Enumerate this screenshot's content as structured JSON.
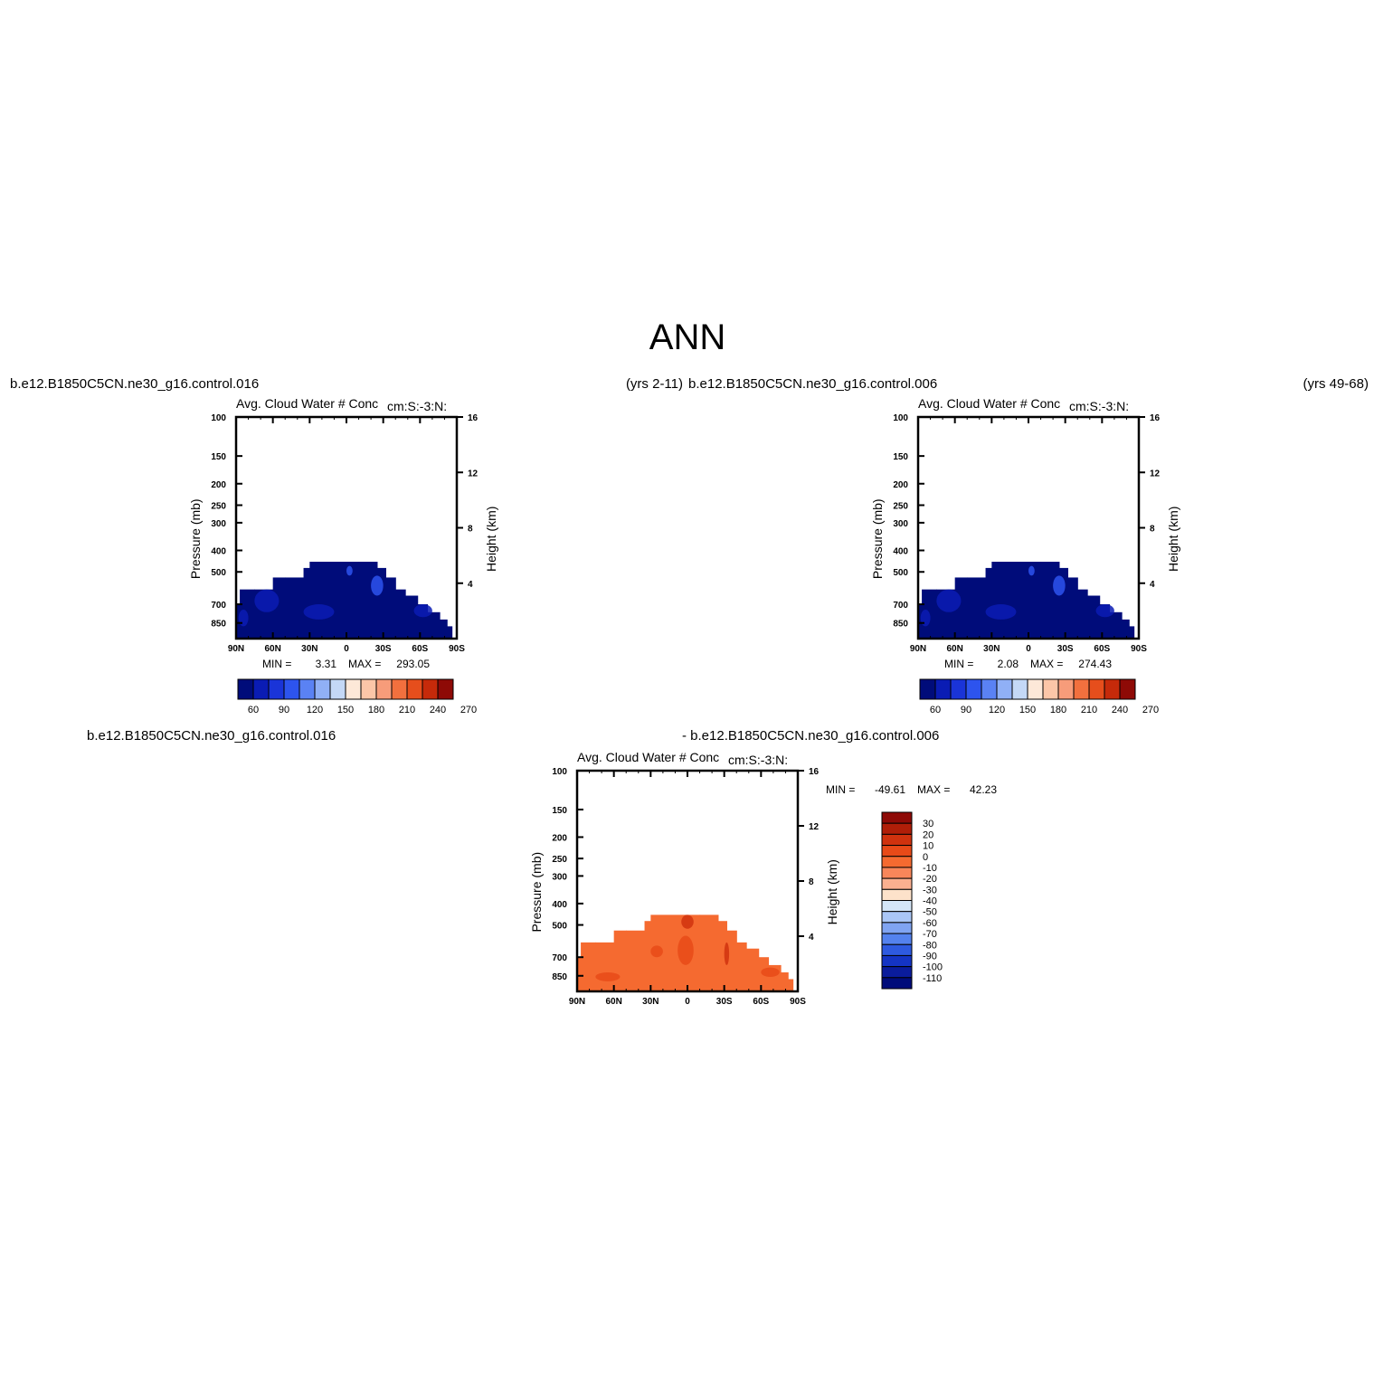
{
  "figure": {
    "title": "ANN",
    "run_labels": {
      "top_left": "b.e12.B1850C5CN.ne30_g16.control.016",
      "top_left_years": "(yrs 2-11)",
      "top_right": "b.e12.B1850C5CN.ne30_g16.control.006",
      "top_right_years": "(yrs 49-68)",
      "bottom_left": "b.e12.B1850C5CN.ne30_g16.control.016",
      "bottom_right": "- b.e12.B1850C5CN.ne30_g16.control.006"
    }
  },
  "chart_data": [
    {
      "type": "heatmap",
      "title": "Avg. Cloud Water # Conc",
      "subtitle": "cm:S:-3:N:",
      "ylabel": "Pressure (mb)",
      "y2label": "Height (km)",
      "x_ticks": [
        "90N",
        "60N",
        "30N",
        "0",
        "30S",
        "60S",
        "90S"
      ],
      "x_range": [
        90,
        -90
      ],
      "y_ticks": [
        100,
        150,
        200,
        250,
        300,
        400,
        500,
        700,
        850
      ],
      "y_range": [
        100,
        1000
      ],
      "y_scale": "log",
      "y2_ticks": [
        16,
        12,
        8,
        4
      ],
      "min_label": "MIN =",
      "min_value": "3.31",
      "max_label": "MAX =",
      "max_value": "293.05",
      "colorbar": {
        "orientation": "horizontal",
        "levels": [
          60,
          90,
          120,
          150,
          180,
          210,
          240,
          270
        ],
        "colors": [
          "#000c7a",
          "#0a1cb4",
          "#1a34d8",
          "#2d54ee",
          "#5a82f4",
          "#90b0f6",
          "#c4d8f6",
          "#fde8d8",
          "#fcc6a8",
          "#f79c7a",
          "#f2703e",
          "#e64e1c",
          "#c62a0a",
          "#8e0a06"
        ]
      }
    },
    {
      "type": "heatmap",
      "title": "Avg. Cloud Water # Conc",
      "subtitle": "cm:S:-3:N:",
      "ylabel": "Pressure (mb)",
      "y2label": "Height (km)",
      "x_ticks": [
        "90N",
        "60N",
        "30N",
        "0",
        "30S",
        "60S",
        "90S"
      ],
      "x_range": [
        90,
        -90
      ],
      "y_ticks": [
        100,
        150,
        200,
        250,
        300,
        400,
        500,
        700,
        850
      ],
      "y_range": [
        100,
        1000
      ],
      "y_scale": "log",
      "y2_ticks": [
        16,
        12,
        8,
        4
      ],
      "min_label": "MIN =",
      "min_value": "2.08",
      "max_label": "MAX =",
      "max_value": "274.43",
      "colorbar": {
        "orientation": "horizontal",
        "levels": [
          60,
          90,
          120,
          150,
          180,
          210,
          240,
          270
        ],
        "colors": [
          "#000c7a",
          "#0a1cb4",
          "#1a34d8",
          "#2d54ee",
          "#5a82f4",
          "#90b0f6",
          "#c4d8f6",
          "#fde8d8",
          "#fcc6a8",
          "#f79c7a",
          "#f2703e",
          "#e64e1c",
          "#c62a0a",
          "#8e0a06"
        ]
      }
    },
    {
      "type": "heatmap",
      "title": "Avg. Cloud Water # Conc",
      "subtitle": "cm:S:-3:N:",
      "ylabel": "Pressure (mb)",
      "y2label": "Height (km)",
      "x_ticks": [
        "90N",
        "60N",
        "30N",
        "0",
        "30S",
        "60S",
        "90S"
      ],
      "x_range": [
        90,
        -90
      ],
      "y_ticks": [
        100,
        150,
        200,
        250,
        300,
        400,
        500,
        700,
        850
      ],
      "y_range": [
        100,
        1000
      ],
      "y_scale": "log",
      "y2_ticks": [
        16,
        12,
        8,
        4
      ],
      "min_label": "MIN =",
      "min_value": "-49.61",
      "max_label": "MAX =",
      "max_value": "42.23",
      "colorbar": {
        "orientation": "vertical",
        "levels": [
          30,
          20,
          10,
          0,
          -10,
          -20,
          -30,
          -40,
          -50,
          -60,
          -70,
          -80,
          -90,
          -100,
          -110
        ],
        "colors": [
          "#8e0a06",
          "#b01e08",
          "#d0320e",
          "#e84a18",
          "#f56a30",
          "#f8865a",
          "#fbb090",
          "#fde2ca",
          "#d4e6f8",
          "#aac6f6",
          "#80a4f2",
          "#5482ee",
          "#2e5ae0",
          "#1434c4",
          "#0a1c9c",
          "#000c7a"
        ]
      }
    }
  ]
}
